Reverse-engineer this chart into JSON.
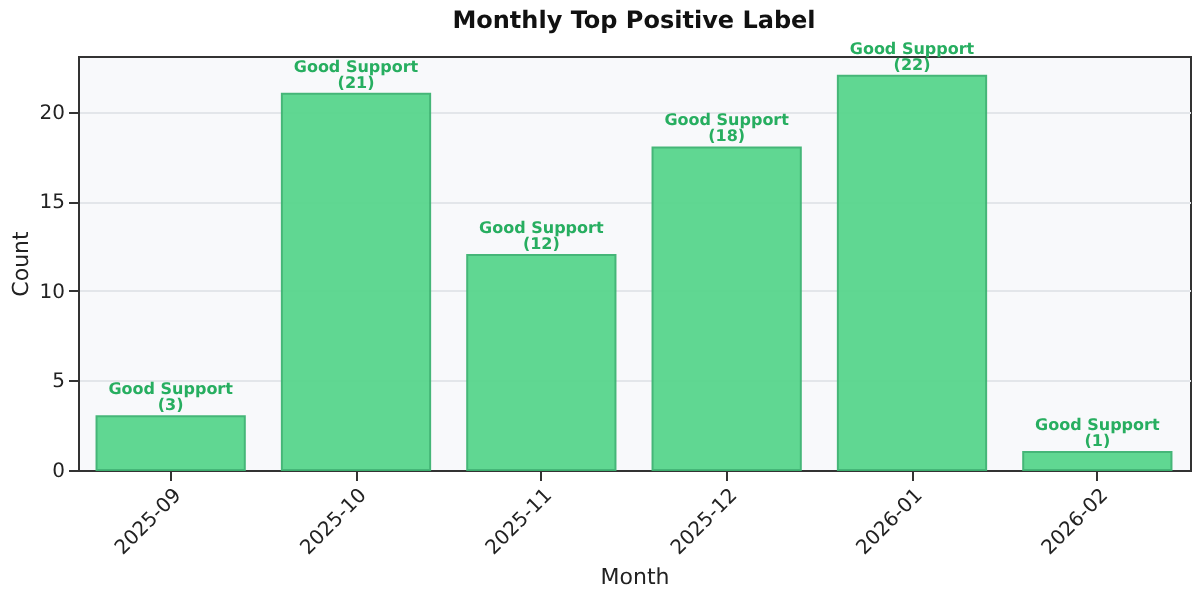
{
  "chart_data": {
    "type": "bar",
    "title": "Monthly Top Positive Label",
    "xlabel": "Month",
    "ylabel": "Count",
    "categories": [
      "2025-09",
      "2025-10",
      "2025-11",
      "2025-12",
      "2026-01",
      "2026-02"
    ],
    "values": [
      3,
      21,
      12,
      18,
      22,
      1
    ],
    "value_labels": [
      "Good Support\n(3)",
      "Good Support\n(21)",
      "Good Support\n(12)",
      "Good Support\n(18)",
      "Good Support\n(22)",
      "Good Support\n(1)"
    ],
    "color": "#58d68d",
    "ylim": [
      0,
      23.1
    ],
    "yticks": [
      0,
      5,
      10,
      15,
      20
    ],
    "grid": "y"
  }
}
